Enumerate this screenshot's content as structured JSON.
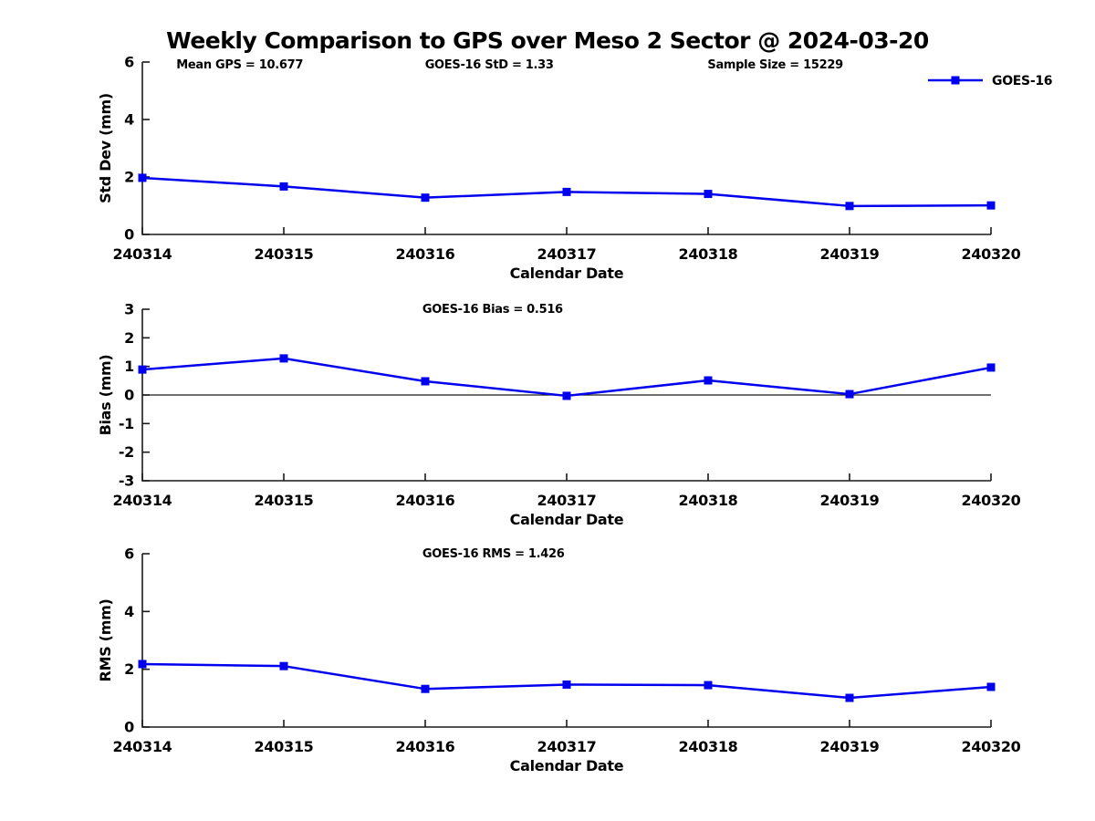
{
  "figure": {
    "title": "Weekly Comparison to GPS over Meso 2 Sector @ 2024-03-20",
    "background": "#ffffff",
    "text_color": "#000000",
    "axis_color": "#1a1a1a",
    "series_color": "#0000ee",
    "x_axis_label": "Calendar Date",
    "legend": {
      "label": "GOES-16",
      "position": "top-right",
      "marker": "filled-square"
    }
  },
  "chart_data": [
    {
      "type": "line",
      "name": "std-dev",
      "title": "",
      "annotations": [
        "Mean GPS = 10.677",
        "GOES-16 StD = 1.33",
        "Sample Size = 15229"
      ],
      "ylabel": "Std Dev (mm)",
      "xlabel": "Calendar Date",
      "ylim": [
        0,
        6
      ],
      "yticks": [
        0,
        2,
        4,
        6
      ],
      "categories": [
        "240314",
        "240315",
        "240316",
        "240317",
        "240318",
        "240319",
        "240320"
      ],
      "series": [
        {
          "name": "GOES-16",
          "values": [
            1.97,
            1.67,
            1.28,
            1.48,
            1.41,
            0.99,
            1.01
          ]
        }
      ],
      "zero_line": false,
      "show_legend": true,
      "grid": false,
      "legend_entries": [
        "GOES-16"
      ]
    },
    {
      "type": "line",
      "name": "bias",
      "title": "GOES-16 Bias  = 0.516",
      "annotations": [],
      "ylabel": "Bias (mm)",
      "xlabel": "Calendar Date",
      "ylim": [
        -3,
        3
      ],
      "yticks": [
        -3,
        -2,
        -1,
        0,
        1,
        2,
        3
      ],
      "categories": [
        "240314",
        "240315",
        "240316",
        "240317",
        "240318",
        "240319",
        "240320"
      ],
      "series": [
        {
          "name": "GOES-16",
          "values": [
            0.89,
            1.28,
            0.48,
            -0.03,
            0.51,
            0.03,
            0.96
          ]
        }
      ],
      "zero_line": true,
      "show_legend": false,
      "grid": false,
      "legend_entries": []
    },
    {
      "type": "line",
      "name": "rms",
      "title": "GOES-16 RMS = 1.426",
      "annotations": [],
      "ylabel": "RMS (mm)",
      "xlabel": "Calendar Date",
      "ylim": [
        0,
        6
      ],
      "yticks": [
        0,
        2,
        4,
        6
      ],
      "categories": [
        "240314",
        "240315",
        "240316",
        "240317",
        "240318",
        "240319",
        "240320"
      ],
      "series": [
        {
          "name": "GOES-16",
          "values": [
            2.18,
            2.11,
            1.32,
            1.47,
            1.45,
            1.01,
            1.39
          ]
        }
      ],
      "zero_line": false,
      "show_legend": false,
      "grid": false,
      "legend_entries": []
    }
  ]
}
